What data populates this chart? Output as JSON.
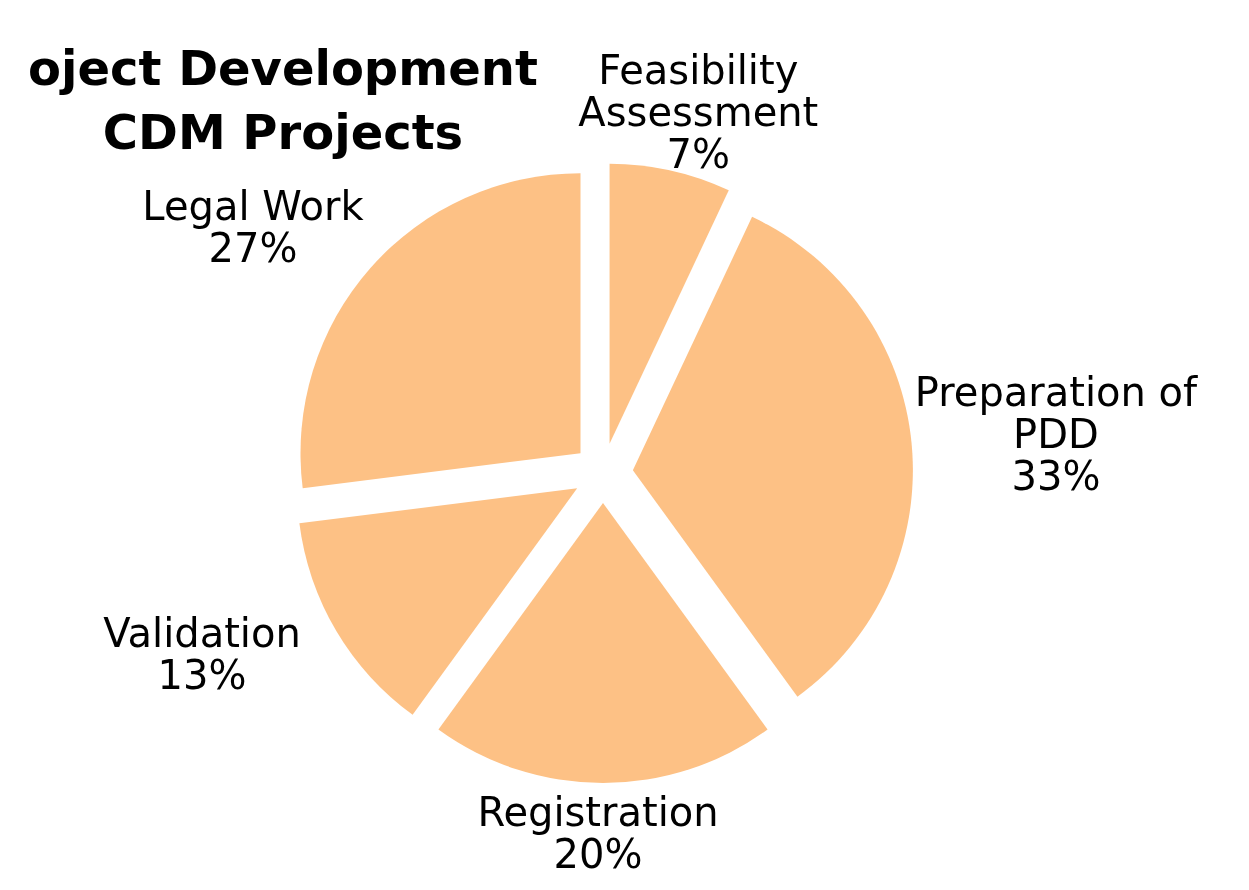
{
  "chart_data": {
    "type": "pie",
    "title": "oject Development\nCDM Projects",
    "categories": [
      "Feasibility Assessment",
      "Preparation of PDD",
      "Registration",
      "Validation",
      "Legal Work"
    ],
    "values": [
      7,
      33,
      20,
      13,
      27
    ],
    "value_labels": [
      "7%",
      "33%",
      "20%",
      "13%",
      "27%"
    ],
    "colors": [
      "#fdc185",
      "#fdc185",
      "#fdc185",
      "#fdc185",
      "#fdc185"
    ],
    "legend": false
  }
}
